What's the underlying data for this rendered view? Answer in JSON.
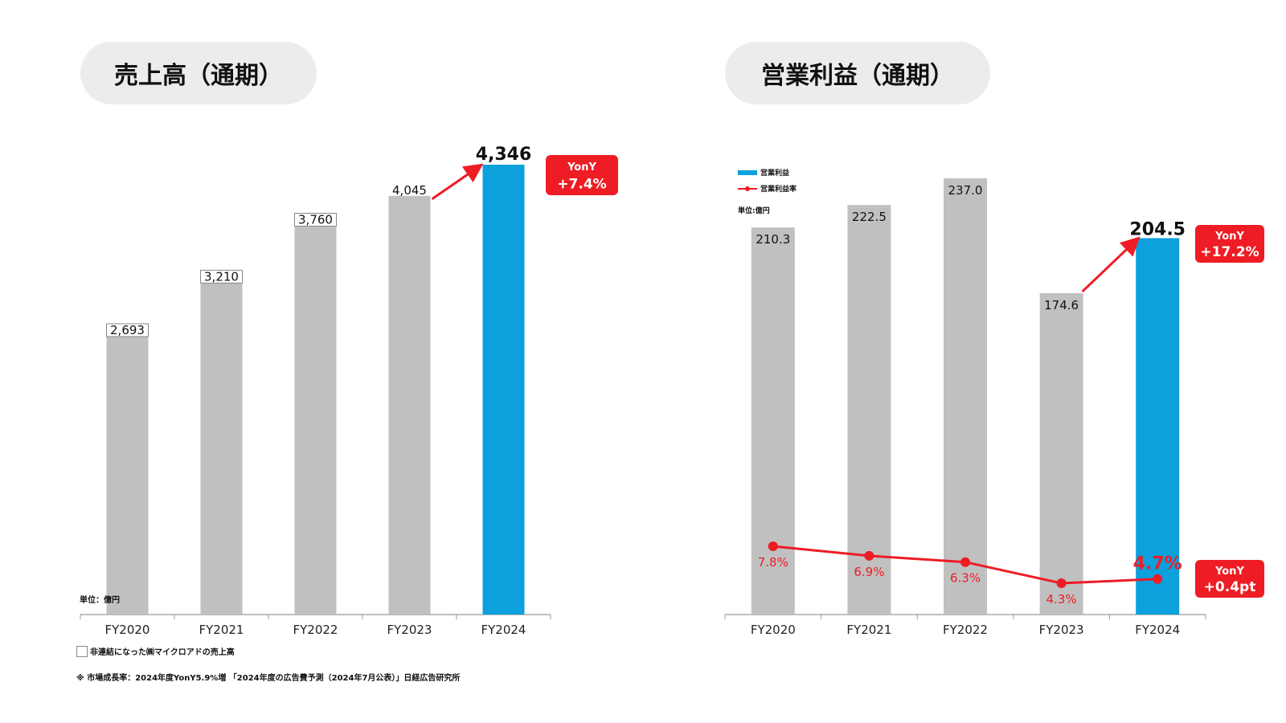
{
  "left_panel": {
    "title": "売上高（通期）",
    "unit_note": "単位：億円",
    "legend_box_note": "非連結になった㈱マイクロアドの売上高",
    "footnote": "※ 市場成長率：2024年度YonY5.9%増 「2024年度の広告費予測（2024年7月公表）」日経広告研究所",
    "yony_label": "YonY",
    "yony_value": "+7.4%"
  },
  "right_panel": {
    "title": "営業利益（通期）",
    "unit_note": "単位:億円",
    "legend_bar": "営業利益",
    "legend_line": "営業利益率",
    "yony_bar_label": "YonY",
    "yony_bar_value": "+17.2%",
    "yony_line_label": "YonY",
    "yony_line_value": "+0.4pt"
  },
  "colors": {
    "bar_gray": "#c0c0c0",
    "bar_blue": "#0ca0dc",
    "accent_red": "#ee1c24",
    "pill_bg": "#ececec"
  },
  "chart_data": [
    {
      "type": "bar",
      "title": "売上高（通期）",
      "unit": "億円",
      "categories": [
        "FY2020",
        "FY2021",
        "FY2022",
        "FY2023",
        "FY2024"
      ],
      "values": [
        2693,
        3210,
        3760,
        4045,
        4346
      ],
      "value_labels": [
        "2,693",
        "3,210",
        "3,760",
        "4,045",
        "4,346"
      ],
      "highlight_index": 4,
      "ylim": [
        0,
        4600
      ],
      "grid": false
    },
    {
      "type": "bar",
      "title": "営業利益（通期）",
      "unit": "億円",
      "categories": [
        "FY2020",
        "FY2021",
        "FY2022",
        "FY2023",
        "FY2024"
      ],
      "series": [
        {
          "name": "営業利益",
          "type": "bar",
          "values": [
            210.3,
            222.5,
            237.0,
            174.6,
            204.5
          ],
          "labels": [
            "210.3",
            "222.5",
            "237.0",
            "174.6",
            "204.5"
          ]
        },
        {
          "name": "営業利益率",
          "type": "line",
          "values": [
            7.8,
            6.9,
            6.3,
            4.3,
            4.7
          ],
          "labels": [
            "7.8%",
            "6.9%",
            "6.3%",
            "4.3%",
            "4.7%"
          ]
        }
      ],
      "highlight_index": 4,
      "ylim": [
        0,
        260
      ],
      "legend": "top-left",
      "grid": false
    }
  ]
}
